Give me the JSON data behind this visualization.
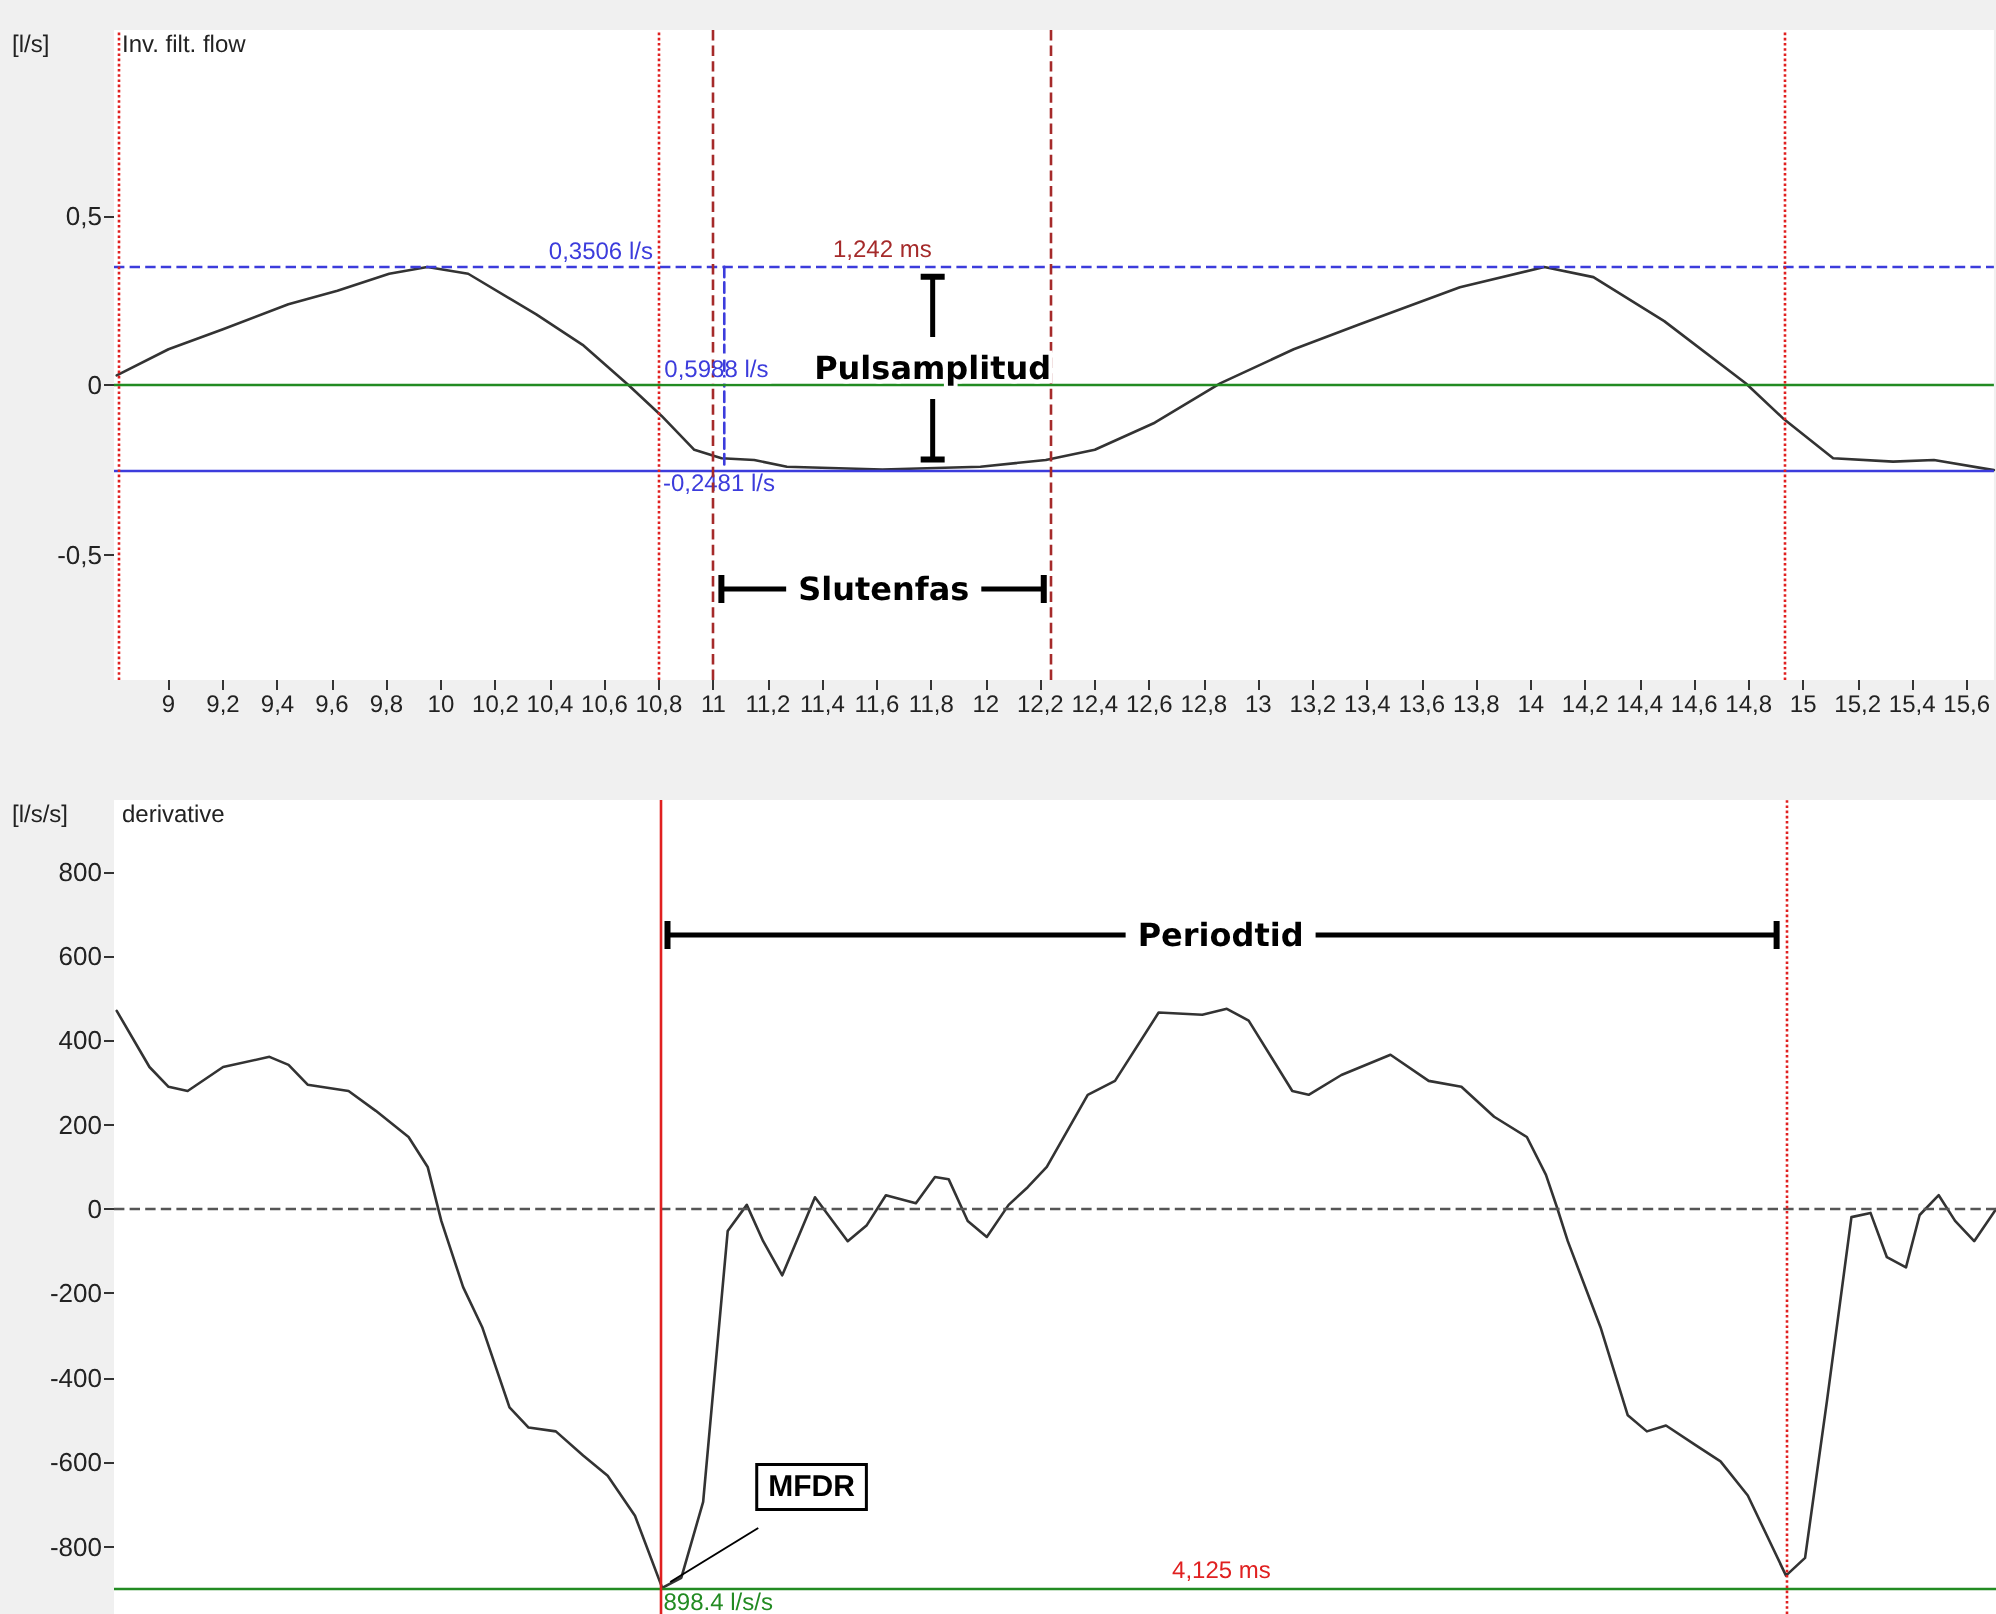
{
  "chart_data": [
    {
      "type": "line",
      "title": "Inv. filt. flow",
      "ylabel": "[l/s]",
      "xlim": [
        8.8,
        15.7
      ],
      "ylim": [
        -0.87,
        1.05
      ],
      "xticks": [
        9,
        {
          "value": 9.2,
          "label": "9,2"
        },
        {
          "value": 9.4,
          "label": "9,4"
        },
        {
          "value": 9.6,
          "label": "9,6"
        },
        {
          "value": 9.8,
          "label": "9,8"
        },
        10,
        {
          "value": 10.2,
          "label": "10,2"
        },
        {
          "value": 10.4,
          "label": "10,4"
        },
        {
          "value": 10.6,
          "label": "10,6"
        },
        {
          "value": 10.8,
          "label": "10,8"
        },
        11,
        {
          "value": 11.2,
          "label": "11,2"
        },
        {
          "value": 11.4,
          "label": "11,4"
        },
        {
          "value": 11.6,
          "label": "11,6"
        },
        {
          "value": 11.8,
          "label": "11,8"
        },
        12,
        {
          "value": 12.2,
          "label": "12,2"
        },
        {
          "value": 12.4,
          "label": "12,4"
        },
        {
          "value": 12.6,
          "label": "12,6"
        },
        {
          "value": 12.8,
          "label": "12,8"
        },
        13,
        {
          "value": 13.2,
          "label": "13,2"
        },
        {
          "value": 13.4,
          "label": "13,4"
        },
        {
          "value": 13.6,
          "label": "13,6"
        },
        {
          "value": 13.8,
          "label": "13,8"
        },
        14,
        {
          "value": 14.2,
          "label": "14,2"
        },
        {
          "value": 14.4,
          "label": "14,4"
        },
        {
          "value": 14.6,
          "label": "14,6"
        },
        {
          "value": 14.8,
          "label": "14,8"
        },
        15,
        {
          "value": 15.2,
          "label": "15,2"
        },
        {
          "value": 15.4,
          "label": "15,4"
        },
        {
          "value": 15.6,
          "label": "15,6"
        }
      ],
      "yticks": [
        {
          "value": 0.5,
          "label": "0,5"
        },
        0,
        {
          "value": -0.5,
          "label": "-0,5"
        }
      ],
      "grid": false,
      "marker": "none",
      "line_style": "solid",
      "series": [
        {
          "color": "#333333",
          "x": [
            8.81,
            9.0,
            9.2,
            9.44,
            9.62,
            9.81,
            9.95,
            10.1,
            10.35,
            10.52,
            10.69,
            10.81,
            10.93,
            11.03,
            11.15,
            11.27,
            11.62,
            11.98,
            12.22,
            12.4,
            12.62,
            12.86,
            13.13,
            13.37,
            13.74,
            14.05,
            14.23,
            14.49,
            14.79,
            14.93,
            15.11,
            15.33,
            15.48,
            15.7
          ],
          "values": [
            0.03,
            0.107,
            0.166,
            0.24,
            0.28,
            0.33,
            0.35,
            0.33,
            0.21,
            0.12,
            0.0,
            -0.09,
            -0.19,
            -0.215,
            -0.22,
            -0.24,
            -0.248,
            -0.24,
            -0.22,
            -0.19,
            -0.11,
            0.006,
            0.107,
            0.18,
            0.29,
            0.35,
            0.32,
            0.19,
            0.006,
            -0.1,
            -0.215,
            -0.225,
            -0.22,
            -0.25
          ]
        },
        {
          "color": "#3c3cdc",
          "line_style": "dashed",
          "x": [
            11.04,
            11.04
          ],
          "values": [
            0.3506,
            -0.2481
          ]
        }
      ],
      "ref_lines": [
        {
          "axis": "y",
          "value": 0,
          "color": "#228b22",
          "line_style": "solid"
        },
        {
          "axis": "y",
          "value": 0.3506,
          "label": "0,3506 l/s",
          "color": "#3c3cdc",
          "line_style": "dashed"
        },
        {
          "axis": "y",
          "value": -0.2481,
          "label": "-0,2481 l/s",
          "color": "#3c3cdc",
          "line_style": "solid"
        },
        {
          "axis": "x",
          "value": 8.82,
          "color": "#e02020",
          "line_style": "dotted"
        },
        {
          "axis": "x",
          "value": 10.8,
          "color": "#e02020",
          "line_style": "dotted"
        },
        {
          "axis": "x",
          "value": 11.0,
          "color": "#a52a2a",
          "line_style": "dashed"
        },
        {
          "axis": "x",
          "value": 12.242,
          "color": "#a52a2a",
          "line_style": "dashed"
        },
        {
          "axis": "x",
          "value": 14.925,
          "color": "#e02020",
          "line_style": "dotted"
        }
      ],
      "annotations": [
        {
          "text": "1,242 ms",
          "x": 11.62,
          "y": 0.3506
        },
        {
          "text": "0,5988 l/s",
          "x": 10.82,
          "y": 0.05
        },
        "Pulsamplitud",
        "Slutenfas"
      ]
    },
    {
      "type": "line",
      "title": "derivative",
      "ylabel": "[l/s/s]",
      "xlim": [
        8.8,
        15.7
      ],
      "ylim": [
        -960,
        970
      ],
      "yticks": [
        -800,
        -600,
        -400,
        -200,
        0,
        200,
        400,
        600,
        800
      ],
      "tick_labels": "y",
      "grid": false,
      "marker": "none",
      "line_style": "solid",
      "series": [
        {
          "color": "#333333",
          "x": [
            8.81,
            8.93,
            9.0,
            9.07,
            9.2,
            9.37,
            9.44,
            9.51,
            9.66,
            9.76,
            9.88,
            9.95,
            10.0,
            10.08,
            10.15,
            10.25,
            10.32,
            10.42,
            10.52,
            10.61,
            10.71,
            10.81,
            10.88,
            10.96,
            11.05,
            11.12,
            11.18,
            11.25,
            11.37,
            11.49,
            11.56,
            11.63,
            11.74,
            11.81,
            11.86,
            11.93,
            12.0,
            12.08,
            12.15,
            12.22,
            12.37,
            12.47,
            12.63,
            12.79,
            12.88,
            12.96,
            13.12,
            13.18,
            13.3,
            13.48,
            13.62,
            13.74,
            13.86,
            13.98,
            14.05,
            14.09,
            14.13,
            14.25,
            14.35,
            14.42,
            14.49,
            14.6,
            14.69,
            14.79,
            14.86,
            14.93,
            15.0,
            15.08,
            15.17,
            15.24,
            15.3,
            15.37,
            15.42,
            15.49,
            15.55,
            15.62,
            15.7
          ],
          "values": [
            470,
            337,
            290,
            280,
            337,
            361,
            342,
            295,
            280,
            233,
            171,
            100,
            -28,
            -185,
            -280,
            -470,
            -518,
            -527,
            -584,
            -632,
            -727,
            -898,
            -874,
            -694,
            -52,
            10,
            -76,
            -157,
            28,
            -76,
            -38,
            33,
            14,
            76,
            71,
            -28,
            -66,
            10,
            52,
            100,
            271,
            304,
            466,
            461,
            475,
            447,
            280,
            271,
            318,
            366,
            304,
            290,
            219,
            171,
            81,
            5,
            -76,
            -280,
            -489,
            -527,
            -513,
            -560,
            -598,
            -679,
            -774,
            -869,
            -827,
            -456,
            -19,
            -9,
            -114,
            -138,
            -14,
            33,
            -28,
            -76,
            0
          ]
        }
      ],
      "ref_lines": [
        {
          "axis": "y",
          "value": 0,
          "color": "#555555",
          "line_style": "dashed"
        },
        {
          "axis": "y",
          "value": -898.4,
          "label": "898.4 l/s/s",
          "color": "#228b22",
          "line_style": "solid"
        },
        {
          "axis": "x",
          "value": 10.8,
          "color": "#e02020",
          "line_style": "solid"
        },
        {
          "axis": "x",
          "value": 14.925,
          "color": "#e02020",
          "line_style": "dotted"
        }
      ],
      "annotations": [
        "Periodtid",
        {
          "text": "4,125 ms",
          "x": 12.86,
          "y": -898.4
        },
        {
          "text": "MFDR",
          "x": 10.81,
          "y": -898.4
        }
      ]
    }
  ]
}
